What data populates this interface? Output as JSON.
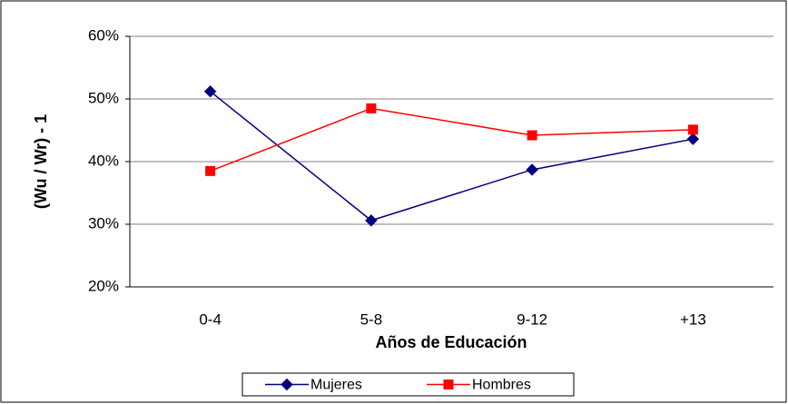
{
  "chart_data": {
    "type": "line",
    "x_label": "Años de Educación",
    "y_label": "(Wu / Wr) - 1",
    "categories": [
      "0-4",
      "5-8",
      "9-12",
      "+13"
    ],
    "series": [
      {
        "name": "Mujeres",
        "color": "#000080",
        "marker": "diamond",
        "values": [
          51.2,
          30.6,
          38.7,
          43.6
        ]
      },
      {
        "name": "Hombres",
        "color": "#ff0000",
        "marker": "square",
        "values": [
          38.5,
          48.5,
          44.2,
          45.1
        ]
      }
    ],
    "ylim": [
      20,
      60
    ],
    "yticks": [
      {
        "value": 20,
        "label": "20%"
      },
      {
        "value": 30,
        "label": "30%"
      },
      {
        "value": 40,
        "label": "40%"
      },
      {
        "value": 50,
        "label": "50%"
      },
      {
        "value": 60,
        "label": "60%"
      }
    ],
    "grid": true,
    "legend": "bottom"
  }
}
